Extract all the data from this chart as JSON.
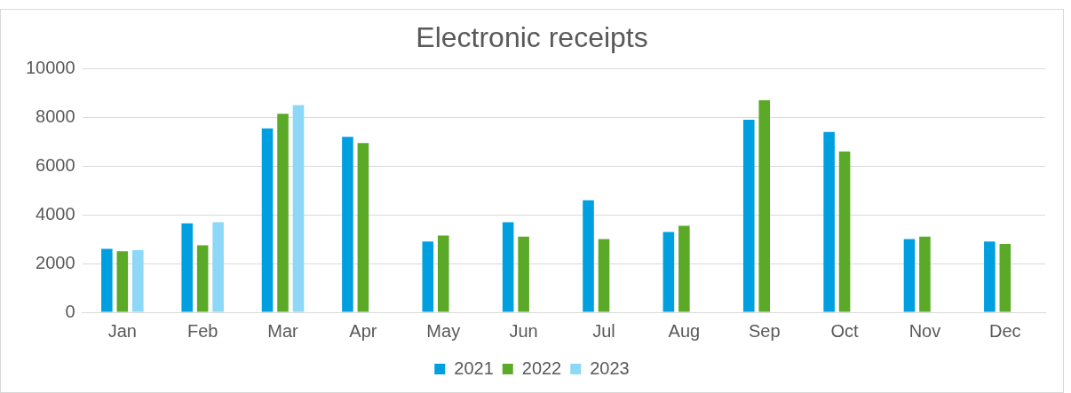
{
  "chart_data": {
    "type": "bar",
    "title": "Electronic receipts",
    "categories": [
      "Jan",
      "Feb",
      "Mar",
      "Apr",
      "May",
      "Jun",
      "Jul",
      "Aug",
      "Sep",
      "Oct",
      "Nov",
      "Dec"
    ],
    "series": [
      {
        "name": "2021",
        "color": "#009fe0",
        "values": [
          2600,
          3650,
          7550,
          7200,
          2900,
          3700,
          4600,
          3300,
          7900,
          7400,
          3000,
          2900
        ]
      },
      {
        "name": "2022",
        "color": "#5aaa28",
        "values": [
          2500,
          2750,
          8150,
          6950,
          3150,
          3100,
          3000,
          3550,
          8700,
          6600,
          3100,
          2800
        ]
      },
      {
        "name": "2023",
        "color": "#8cd8f6",
        "values": [
          2550,
          3700,
          8500,
          null,
          null,
          null,
          null,
          null,
          null,
          null,
          null,
          null
        ]
      }
    ],
    "ylim": [
      0,
      10000
    ],
    "yticks": [
      0,
      2000,
      4000,
      6000,
      8000,
      10000
    ],
    "grid": "y",
    "legend": "bottom"
  }
}
